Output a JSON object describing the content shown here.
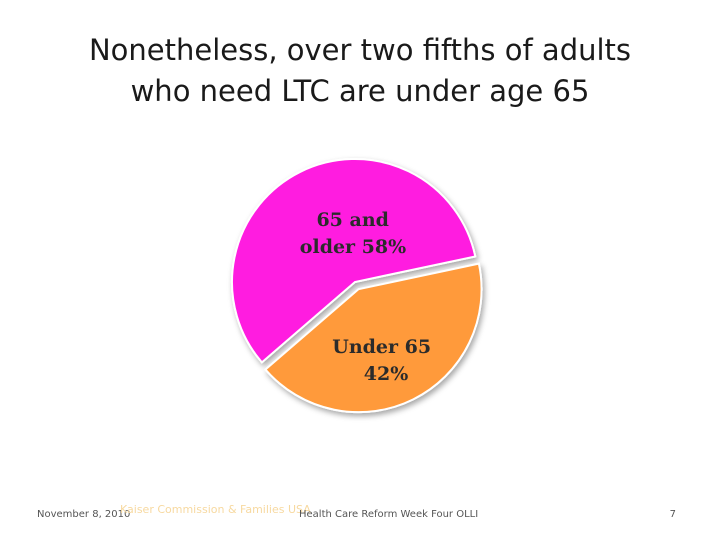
{
  "slide": {
    "title_line1": "Nonetheless, over two fifths of adults",
    "title_line2": "who need LTC are under age 65"
  },
  "chart_data": {
    "type": "pie",
    "slices": [
      {
        "label_line1": "65 and",
        "label_line2": "older 58%",
        "value": 58,
        "color": "#ff1fe0"
      },
      {
        "label_line1": "Under 65",
        "label_line2": "42%",
        "value": 42,
        "color": "#ff9a3a"
      }
    ]
  },
  "footer": {
    "date": "November 8, 2010",
    "source_faded": "Kaiser Commission & Families USA",
    "center": "Health Care Reform Week Four OLLI",
    "page": "7"
  }
}
